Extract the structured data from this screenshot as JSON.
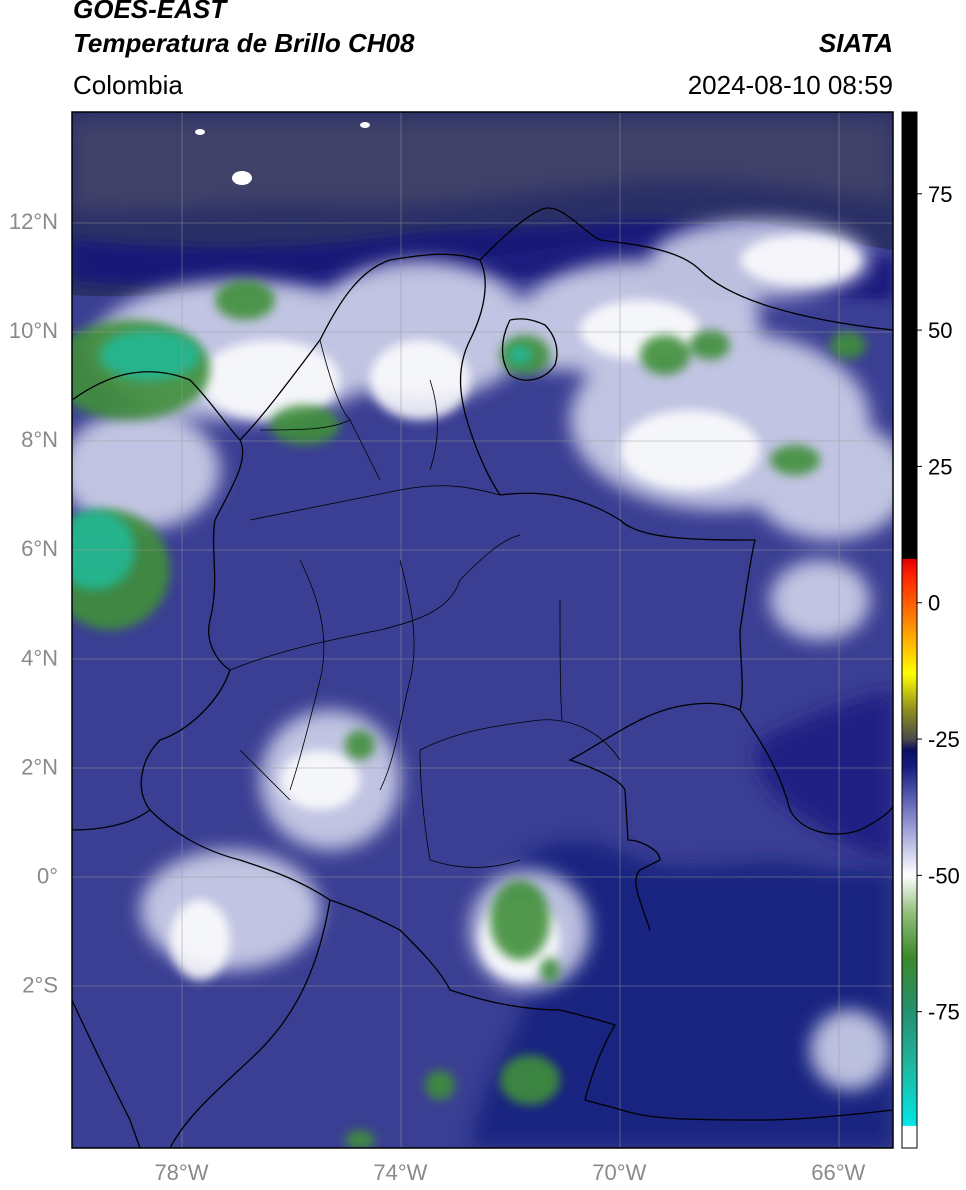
{
  "header": {
    "satellite": "GOES-EAST",
    "product": "Temperatura de Brillo CH08",
    "brand": "SIATA",
    "region": "Colombia",
    "timestamp": "2024-08-10 08:59"
  },
  "map": {
    "lon_range": [
      -80,
      -65
    ],
    "lat_range": [
      -5,
      14
    ],
    "lat_ticks": [
      {
        "value": 12,
        "label": "12°N"
      },
      {
        "value": 10,
        "label": "10°N"
      },
      {
        "value": 8,
        "label": "8°N"
      },
      {
        "value": 6,
        "label": "6°N"
      },
      {
        "value": 4,
        "label": "4°N"
      },
      {
        "value": 2,
        "label": "2°N"
      },
      {
        "value": 0,
        "label": "0°"
      },
      {
        "value": -2,
        "label": "2°S"
      }
    ],
    "lon_ticks": [
      {
        "value": -78,
        "label": "78°W"
      },
      {
        "value": -74,
        "label": "74°W"
      },
      {
        "value": -70,
        "label": "70°W"
      },
      {
        "value": -66,
        "label": "66°W"
      }
    ],
    "colors": {
      "background": "#3b3f93",
      "deep": "#14197a",
      "cold_cloud": "#e8eaf6",
      "very_cold": "#3f8f3a",
      "coldest": "#21b894",
      "border": "#000000",
      "grid": "#9a9a9a"
    }
  },
  "colorbar": {
    "range": [
      -100,
      90
    ],
    "tick_labels": [
      {
        "value": 75,
        "label": "75"
      },
      {
        "value": 50,
        "label": "50"
      },
      {
        "value": 25,
        "label": "25"
      },
      {
        "value": 0,
        "label": "0"
      },
      {
        "value": -25,
        "label": "-25"
      },
      {
        "value": -50,
        "label": "-50"
      },
      {
        "value": -75,
        "label": "-75"
      }
    ],
    "stops": [
      {
        "value": -100,
        "color": "#ffffff"
      },
      {
        "value": -96,
        "color": "#ffffff"
      },
      {
        "value": -95.9,
        "color": "#00e6e6"
      },
      {
        "value": -85,
        "color": "#1fb8a0"
      },
      {
        "value": -75,
        "color": "#249070"
      },
      {
        "value": -65,
        "color": "#3c8a2a"
      },
      {
        "value": -57,
        "color": "#8fbf7a"
      },
      {
        "value": -50,
        "color": "#ffffff"
      },
      {
        "value": -40,
        "color": "#8b8fd0"
      },
      {
        "value": -30,
        "color": "#141a80"
      },
      {
        "value": -27,
        "color": "#0a0f60"
      },
      {
        "value": -25,
        "color": "#4a4a4a"
      },
      {
        "value": -20,
        "color": "#8a8a20"
      },
      {
        "value": -13,
        "color": "#ffff00"
      },
      {
        "value": -5,
        "color": "#ff9900"
      },
      {
        "value": 5,
        "color": "#ff2200"
      },
      {
        "value": 8,
        "color": "#e00000"
      },
      {
        "value": 8.1,
        "color": "#000000"
      },
      {
        "value": 90,
        "color": "#000000"
      }
    ]
  }
}
